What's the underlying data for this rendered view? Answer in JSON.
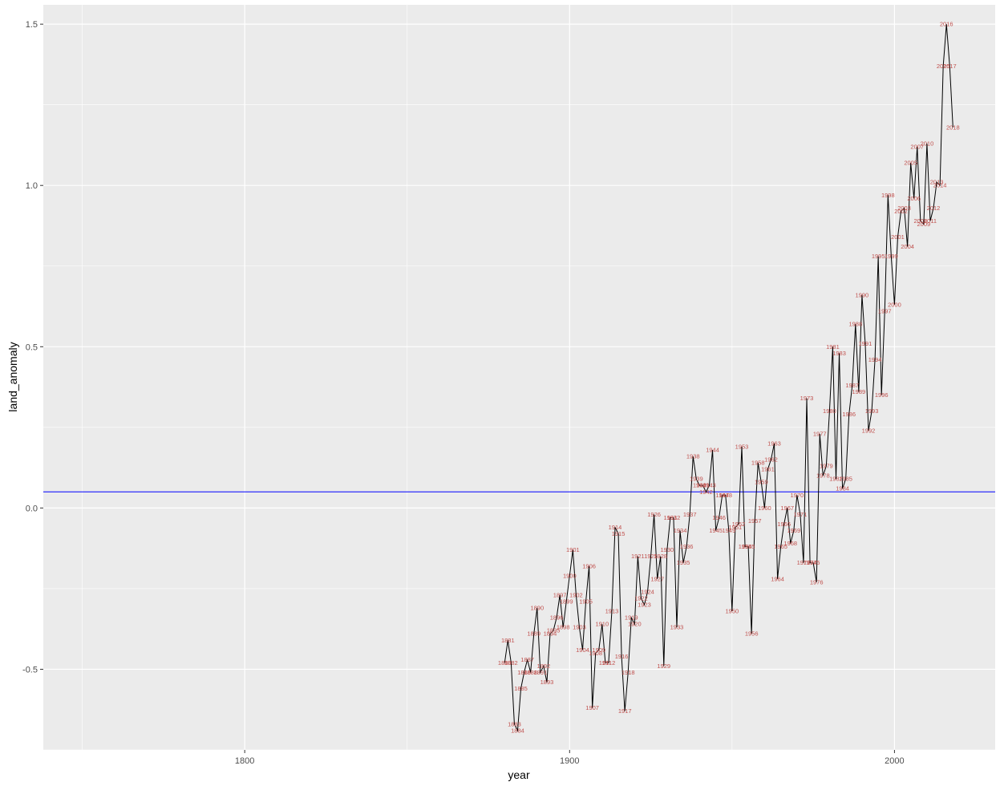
{
  "chart_data": {
    "type": "line",
    "title": "",
    "xlabel": "year",
    "ylabel": "land_anomaly",
    "xlim": [
      1738,
      2031
    ],
    "ylim": [
      -0.75,
      1.56
    ],
    "x_ticks": [
      1800,
      1900,
      2000
    ],
    "x_tick_labels": [
      "1800",
      "1900",
      "2000"
    ],
    "y_ticks": [
      -0.5,
      0.0,
      0.5,
      1.0,
      1.5
    ],
    "y_tick_labels": [
      "-0.5",
      "0.0",
      "0.5",
      "1.0",
      "1.5"
    ],
    "grid": true,
    "panel_background": "#ebebeb",
    "line_color": "#000000",
    "label_color": "#c0504d",
    "hline": {
      "y": 0.05,
      "color": "#0000ff"
    },
    "series": [
      {
        "x": [
          1880,
          1881,
          1882,
          1883,
          1884,
          1885,
          1886,
          1887,
          1888,
          1889,
          1890,
          1891,
          1892,
          1893,
          1894,
          1895,
          1896,
          1897,
          1898,
          1899,
          1900,
          1901,
          1902,
          1903,
          1904,
          1905,
          1906,
          1907,
          1908,
          1909,
          1910,
          1911,
          1912,
          1913,
          1914,
          1915,
          1916,
          1917,
          1918,
          1919,
          1920,
          1921,
          1922,
          1923,
          1924,
          1925,
          1926,
          1927,
          1928,
          1929,
          1930,
          1931,
          1932,
          1933,
          1934,
          1935,
          1936,
          1937,
          1938,
          1939,
          1940,
          1941,
          1942,
          1943,
          1944,
          1945,
          1946,
          1947,
          1948,
          1949,
          1950,
          1951,
          1952,
          1953,
          1954,
          1955,
          1956,
          1957,
          1958,
          1959,
          1960,
          1961,
          1962,
          1963,
          1964,
          1965,
          1966,
          1967,
          1968,
          1969,
          1970,
          1971,
          1972,
          1973,
          1974,
          1975,
          1976,
          1977,
          1978,
          1979,
          1980,
          1981,
          1982,
          1983,
          1984,
          1985,
          1986,
          1987,
          1988,
          1989,
          1990,
          1991,
          1992,
          1993,
          1994,
          1995,
          1996,
          1997,
          1998,
          1999,
          2000,
          2001,
          2002,
          2003,
          2004,
          2005,
          2006,
          2007,
          2008,
          2009,
          2010,
          2011,
          2012,
          2013,
          2014,
          2015,
          2016,
          2017,
          2018
        ],
        "y": [
          -0.48,
          -0.41,
          -0.48,
          -0.67,
          -0.69,
          -0.56,
          -0.51,
          -0.47,
          -0.51,
          -0.39,
          -0.31,
          -0.51,
          -0.49,
          -0.54,
          -0.39,
          -0.38,
          -0.34,
          -0.27,
          -0.37,
          -0.29,
          -0.21,
          -0.13,
          -0.27,
          -0.37,
          -0.44,
          -0.29,
          -0.18,
          -0.62,
          -0.45,
          -0.44,
          -0.36,
          -0.48,
          -0.48,
          -0.32,
          -0.06,
          -0.08,
          -0.46,
          -0.63,
          -0.51,
          -0.34,
          -0.36,
          -0.15,
          -0.28,
          -0.3,
          -0.26,
          -0.15,
          -0.02,
          -0.22,
          -0.15,
          -0.49,
          -0.13,
          -0.03,
          -0.03,
          -0.37,
          -0.07,
          -0.17,
          -0.12,
          -0.02,
          0.16,
          0.09,
          0.07,
          0.07,
          0.05,
          0.07,
          0.18,
          -0.07,
          -0.03,
          0.04,
          0.04,
          -0.07,
          -0.32,
          -0.06,
          -0.05,
          0.19,
          -0.12,
          -0.12,
          -0.39,
          -0.04,
          0.14,
          0.08,
          0.0,
          0.12,
          0.15,
          0.2,
          -0.22,
          -0.12,
          -0.05,
          0.0,
          -0.11,
          -0.07,
          0.04,
          -0.02,
          -0.17,
          0.34,
          -0.17,
          -0.17,
          -0.23,
          0.23,
          0.1,
          0.13,
          0.3,
          0.5,
          0.09,
          0.48,
          0.06,
          0.09,
          0.29,
          0.38,
          0.57,
          0.36,
          0.66,
          0.51,
          0.24,
          0.3,
          0.46,
          0.78,
          0.35,
          0.61,
          0.97,
          0.78,
          0.63,
          0.84,
          0.92,
          0.93,
          0.81,
          1.07,
          0.96,
          1.12,
          0.89,
          0.88,
          1.13,
          0.89,
          0.93,
          1.01,
          1.0,
          1.37,
          1.5,
          1.37,
          1.18
        ]
      }
    ]
  }
}
